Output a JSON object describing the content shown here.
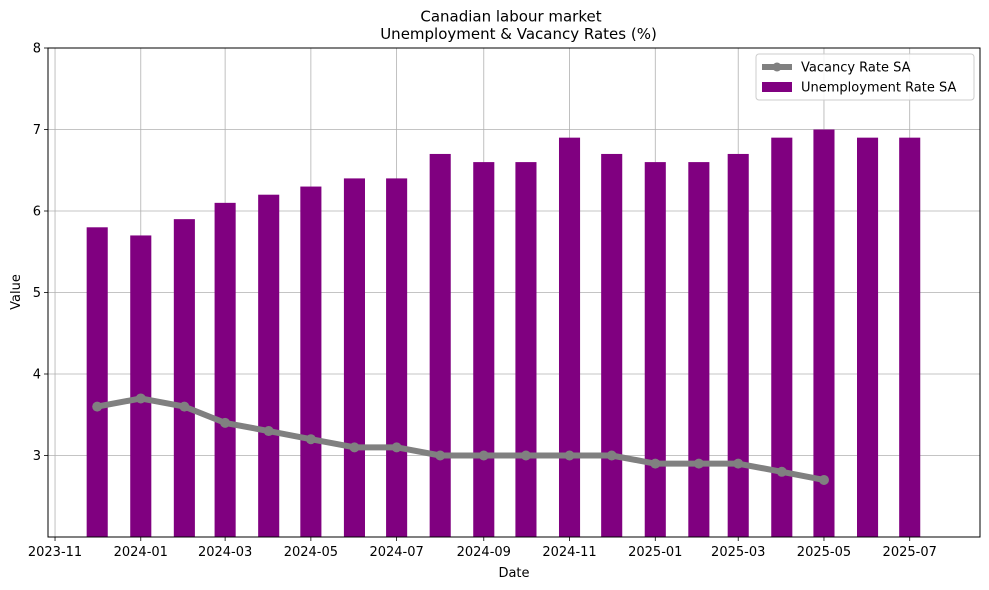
{
  "chart_data": {
    "type": "bar+line",
    "title": "Canadian labour market",
    "subtitle": "Unemployment & Vacancy Rates (%)",
    "xlabel": "Date",
    "ylabel": "Value",
    "ylim": [
      2,
      8
    ],
    "yticks": [
      3,
      4,
      5,
      6,
      7,
      8
    ],
    "xlim": [
      "2023-10-27",
      "2025-08-20"
    ],
    "xticks": [
      "2023-11-01",
      "2024-01-01",
      "2024-03-01",
      "2024-05-01",
      "2024-07-01",
      "2024-09-01",
      "2024-11-01",
      "2025-01-01",
      "2025-03-01",
      "2025-05-01",
      "2025-07-01"
    ],
    "xtick_labels": [
      "2023-11",
      "2024-01",
      "2024-03",
      "2024-05",
      "2024-07",
      "2024-09",
      "2024-11",
      "2025-01",
      "2025-03",
      "2025-05",
      "2025-07"
    ],
    "grid": true,
    "legend_position": "top-right",
    "series": [
      {
        "name": "Vacancy Rate SA",
        "kind": "line",
        "color": "#808080",
        "x": [
          "2023-12-01",
          "2024-01-01",
          "2024-02-01",
          "2024-03-01",
          "2024-04-01",
          "2024-05-01",
          "2024-06-01",
          "2024-07-01",
          "2024-08-01",
          "2024-09-01",
          "2024-10-01",
          "2024-11-01",
          "2024-12-01",
          "2025-01-01",
          "2025-02-01",
          "2025-03-01",
          "2025-04-01",
          "2025-05-01"
        ],
        "values": [
          3.6,
          3.7,
          3.6,
          3.4,
          3.3,
          3.2,
          3.1,
          3.1,
          3.0,
          3.0,
          3.0,
          3.0,
          3.0,
          2.9,
          2.9,
          2.9,
          2.8,
          2.7
        ]
      },
      {
        "name": "Unemployment Rate SA",
        "kind": "bar",
        "color": "#800080",
        "x": [
          "2023-12-01",
          "2024-01-01",
          "2024-02-01",
          "2024-03-01",
          "2024-04-01",
          "2024-05-01",
          "2024-06-01",
          "2024-07-01",
          "2024-08-01",
          "2024-09-01",
          "2024-10-01",
          "2024-11-01",
          "2024-12-01",
          "2025-01-01",
          "2025-02-01",
          "2025-03-01",
          "2025-04-01",
          "2025-05-01",
          "2025-06-01",
          "2025-07-01"
        ],
        "values": [
          5.8,
          5.7,
          5.9,
          6.1,
          6.2,
          6.3,
          6.4,
          6.4,
          6.7,
          6.6,
          6.6,
          6.9,
          6.7,
          6.6,
          6.6,
          6.7,
          6.9,
          7.0,
          6.9,
          6.9
        ]
      }
    ]
  }
}
